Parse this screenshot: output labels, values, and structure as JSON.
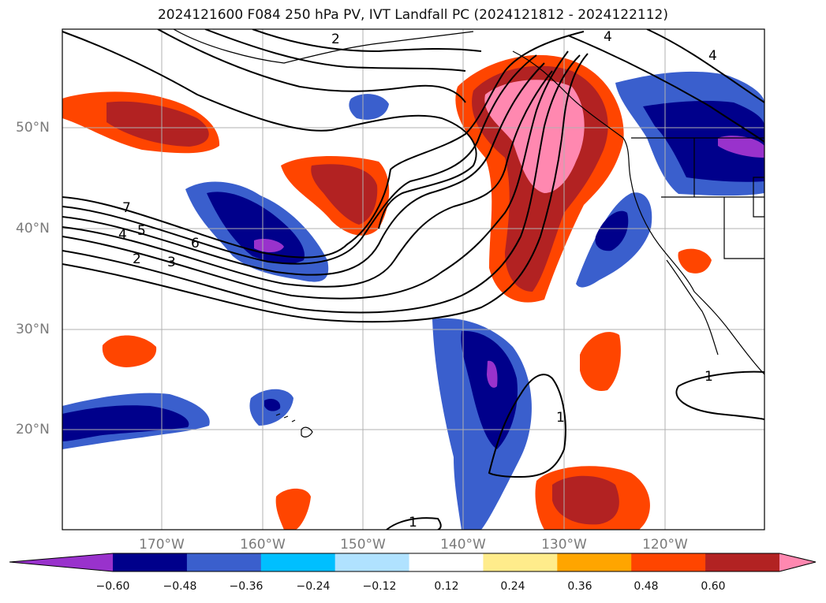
{
  "title": "2024121600 F084 250 hPa PV, IVT Landfall PC (2024121812 - 2024122112)",
  "lat_labels": [
    "50°N",
    "40°N",
    "30°N",
    "20°N"
  ],
  "lon_labels": [
    "170°W",
    "160°W",
    "150°W",
    "140°W",
    "130°W",
    "120°W"
  ],
  "colorbar": {
    "ticks": [
      "−0.60",
      "−0.48",
      "−0.36",
      "−0.24",
      "−0.12",
      "0.12",
      "0.24",
      "0.36",
      "0.48",
      "0.60"
    ],
    "colors": [
      "#9932CC",
      "#00008B",
      "#3A5FCD",
      "#00BFFF",
      "#B0E2FF",
      "#FFFFFF",
      "#FFEC8B",
      "#FFA500",
      "#FF4500",
      "#B22222",
      "#FF88B0"
    ]
  },
  "contour_labels": [
    "1",
    "1",
    "1",
    "2",
    "2",
    "3",
    "4",
    "4",
    "5",
    "6",
    "7"
  ],
  "colors": {
    "grid": "#b0b0b0",
    "contour": "#000000",
    "coast": "#000000"
  }
}
